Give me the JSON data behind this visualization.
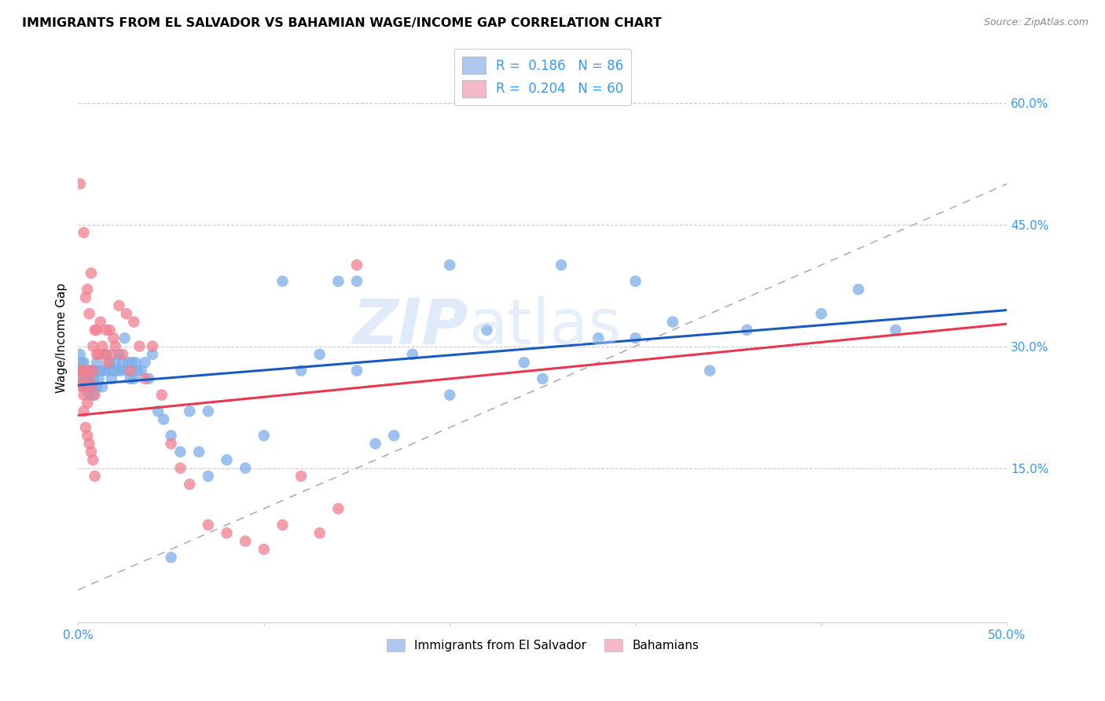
{
  "title": "IMMIGRANTS FROM EL SALVADOR VS BAHAMIAN WAGE/INCOME GAP CORRELATION CHART",
  "source": "Source: ZipAtlas.com",
  "ylabel": "Wage/Income Gap",
  "yaxis_labels": [
    "15.0%",
    "30.0%",
    "45.0%",
    "60.0%"
  ],
  "yaxis_values": [
    0.15,
    0.3,
    0.45,
    0.6
  ],
  "xlim": [
    0.0,
    0.5
  ],
  "ylim": [
    -0.04,
    0.66
  ],
  "legend1_label": "R =  0.186   N = 86",
  "legend2_label": "R =  0.204   N = 60",
  "legend_color1": "#aec6f0",
  "legend_color2": "#f4b8c8",
  "dot_color1": "#7baee8",
  "dot_color2": "#f08090",
  "line_color1": "#1a5bbf",
  "line_color2": "#e8384f",
  "diag_color": "#b0b0b0",
  "watermark": "ZIPatlas",
  "blue_slope": 0.185,
  "blue_intercept": 0.252,
  "pink_slope": 0.225,
  "pink_intercept": 0.215,
  "blue_dots_x": [
    0.001,
    0.001,
    0.002,
    0.002,
    0.002,
    0.003,
    0.003,
    0.003,
    0.004,
    0.004,
    0.005,
    0.005,
    0.005,
    0.006,
    0.006,
    0.006,
    0.007,
    0.007,
    0.008,
    0.008,
    0.009,
    0.009,
    0.01,
    0.01,
    0.011,
    0.012,
    0.013,
    0.014,
    0.015,
    0.016,
    0.017,
    0.018,
    0.019,
    0.02,
    0.021,
    0.022,
    0.023,
    0.024,
    0.025,
    0.026,
    0.027,
    0.028,
    0.029,
    0.03,
    0.031,
    0.032,
    0.034,
    0.036,
    0.038,
    0.04,
    0.043,
    0.046,
    0.05,
    0.055,
    0.06,
    0.065,
    0.07,
    0.08,
    0.09,
    0.1,
    0.11,
    0.12,
    0.13,
    0.14,
    0.15,
    0.16,
    0.17,
    0.18,
    0.2,
    0.22,
    0.24,
    0.26,
    0.28,
    0.3,
    0.32,
    0.34,
    0.36,
    0.4,
    0.42,
    0.44,
    0.15,
    0.2,
    0.25,
    0.3,
    0.05,
    0.07
  ],
  "blue_dots_y": [
    0.27,
    0.29,
    0.26,
    0.28,
    0.27,
    0.25,
    0.27,
    0.28,
    0.26,
    0.27,
    0.25,
    0.27,
    0.26,
    0.24,
    0.27,
    0.26,
    0.25,
    0.27,
    0.24,
    0.26,
    0.25,
    0.27,
    0.25,
    0.28,
    0.26,
    0.27,
    0.25,
    0.27,
    0.29,
    0.27,
    0.28,
    0.26,
    0.27,
    0.28,
    0.27,
    0.29,
    0.27,
    0.28,
    0.31,
    0.27,
    0.28,
    0.26,
    0.28,
    0.26,
    0.28,
    0.27,
    0.27,
    0.28,
    0.26,
    0.29,
    0.22,
    0.21,
    0.19,
    0.17,
    0.22,
    0.17,
    0.22,
    0.16,
    0.15,
    0.19,
    0.38,
    0.27,
    0.29,
    0.38,
    0.27,
    0.18,
    0.19,
    0.29,
    0.24,
    0.32,
    0.28,
    0.4,
    0.31,
    0.31,
    0.33,
    0.27,
    0.32,
    0.34,
    0.37,
    0.32,
    0.38,
    0.4,
    0.26,
    0.38,
    0.04,
    0.14
  ],
  "pink_dots_x": [
    0.001,
    0.001,
    0.002,
    0.002,
    0.003,
    0.003,
    0.003,
    0.004,
    0.004,
    0.005,
    0.005,
    0.005,
    0.006,
    0.006,
    0.007,
    0.007,
    0.008,
    0.008,
    0.009,
    0.009,
    0.01,
    0.01,
    0.011,
    0.012,
    0.013,
    0.014,
    0.015,
    0.016,
    0.017,
    0.018,
    0.019,
    0.02,
    0.022,
    0.024,
    0.026,
    0.028,
    0.03,
    0.033,
    0.036,
    0.04,
    0.045,
    0.05,
    0.055,
    0.06,
    0.07,
    0.08,
    0.09,
    0.1,
    0.11,
    0.12,
    0.13,
    0.14,
    0.15,
    0.003,
    0.004,
    0.005,
    0.006,
    0.007,
    0.008,
    0.009
  ],
  "pink_dots_y": [
    0.26,
    0.5,
    0.27,
    0.25,
    0.24,
    0.44,
    0.27,
    0.36,
    0.25,
    0.37,
    0.23,
    0.27,
    0.34,
    0.26,
    0.39,
    0.25,
    0.3,
    0.27,
    0.32,
    0.24,
    0.29,
    0.32,
    0.29,
    0.33,
    0.3,
    0.29,
    0.32,
    0.28,
    0.32,
    0.29,
    0.31,
    0.3,
    0.35,
    0.29,
    0.34,
    0.27,
    0.33,
    0.3,
    0.26,
    0.3,
    0.24,
    0.18,
    0.15,
    0.13,
    0.08,
    0.07,
    0.06,
    0.05,
    0.08,
    0.14,
    0.07,
    0.1,
    0.4,
    0.22,
    0.2,
    0.19,
    0.18,
    0.17,
    0.16,
    0.14
  ]
}
